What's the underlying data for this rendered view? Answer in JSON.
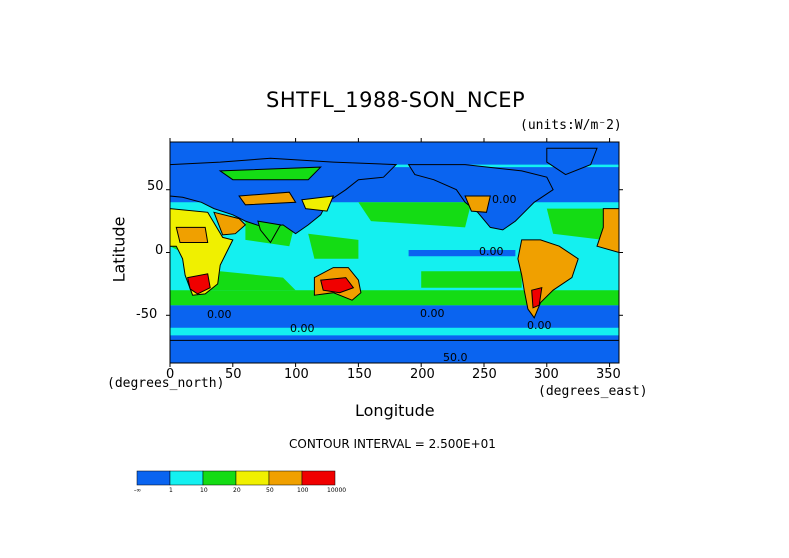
{
  "title": "SHTFL_1988-SON_NCEP",
  "units_label": "(units:W/m⁻2)",
  "xlabel": "Longitude",
  "ylabel": "Latitude",
  "x_unit_label": "(degrees_east)",
  "y_unit_label": "(degrees_north)",
  "contour_note": "CONTOUR INTERVAL = 2.500E+01",
  "contour_labels": [
    "0.00",
    "0.00",
    "0.00",
    "0.00",
    "0.00",
    "0.00",
    "50.0"
  ],
  "colors": {
    "land_outline": "#000000",
    "frame": "#000000"
  },
  "chart_data": {
    "type": "heatmap",
    "title": "SHTFL_1988-SON_NCEP",
    "xlabel": "Longitude",
    "ylabel": "Latitude",
    "xlim": [
      0,
      357.5
    ],
    "ylim": [
      -88,
      88
    ],
    "x_ticks": [
      "0",
      "50",
      "100",
      "150",
      "200",
      "250",
      "300",
      "350"
    ],
    "y_ticks": [
      "50",
      "0",
      "-50"
    ],
    "colorbar": {
      "levels": [
        "-∞",
        "1",
        "10",
        "20",
        "50",
        "100",
        "10000"
      ],
      "colors": [
        "#0a64f0",
        "#14f0f0",
        "#14dc14",
        "#f0f000",
        "#f0a000",
        "#f00000"
      ]
    },
    "contour_interval": 25,
    "legend_position": "bottom-left"
  }
}
